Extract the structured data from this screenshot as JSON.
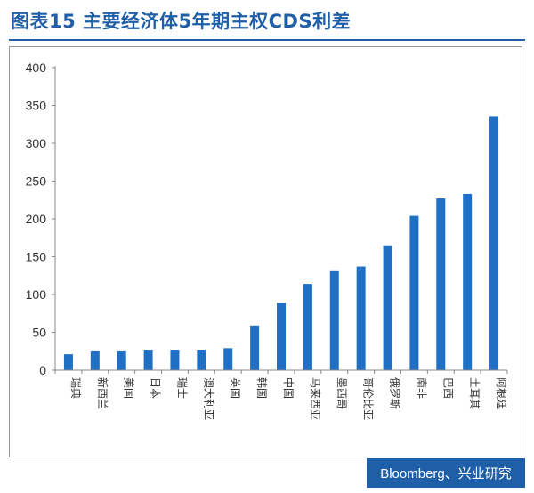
{
  "header": {
    "title": "图表15 主要经济体5年期主权CDS利差"
  },
  "footer": {
    "source": "Bloomberg、兴业研究"
  },
  "colors": {
    "accent": "#1f5fa8",
    "bar": "#1f6fc4"
  },
  "chart_data": {
    "type": "bar",
    "categories": [
      "瑞典",
      "新西兰",
      "美国",
      "日本",
      "瑞士",
      "澳大利亚",
      "英国",
      "韩国",
      "中国",
      "马来西亚",
      "墨西哥",
      "哥伦比亚",
      "俄罗斯",
      "南非",
      "巴西",
      "土耳其",
      "阿根廷"
    ],
    "values": [
      21,
      26,
      26,
      27,
      27,
      27,
      29,
      59,
      89,
      114,
      132,
      137,
      165,
      204,
      227,
      233,
      336
    ],
    "ylim": [
      0,
      400
    ],
    "yticks": [
      0,
      50,
      100,
      150,
      200,
      250,
      300,
      350,
      400
    ],
    "grid": false,
    "legend": "none"
  }
}
